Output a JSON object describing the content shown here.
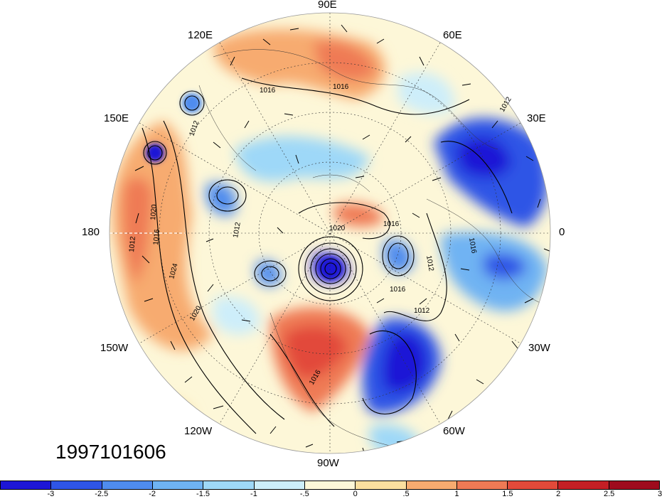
{
  "date_stamp": "1997101606",
  "lon_labels": {
    "e90": "90E",
    "e60": "60E",
    "e30": "30E",
    "zero": "0",
    "w30": "30W",
    "w60": "60W",
    "w90": "90W",
    "w120": "120W",
    "w150": "150W",
    "d180": "180",
    "e150": "150E",
    "e120": "120E"
  },
  "contour_labels": [
    "1016",
    "1012",
    "1016",
    "1012",
    "1020",
    "1016",
    "1012",
    "1020",
    "1024",
    "1020",
    "1012",
    "1016",
    "1016",
    "1016",
    "1012",
    "1012",
    "1016"
  ],
  "colorbar": {
    "colors": [
      "#1d16d6",
      "#2f55e6",
      "#4f8cee",
      "#6fb3f3",
      "#9ed8f8",
      "#cdeefa",
      "#fdf7d8",
      "#fbdf9f",
      "#f7ab70",
      "#ef7a55",
      "#e24a3a",
      "#c41f25",
      "#9e0b1d"
    ],
    "tick_labels": [
      "-3",
      "-2.5",
      "-2",
      "-1.5",
      "-1",
      "-.5",
      "0",
      ".5",
      "1",
      "1.5",
      "2",
      "2.5",
      "3"
    ]
  },
  "colors": {
    "strong_negative": "#1d16d6",
    "negative": "#4f8cee",
    "weak_negative": "#9ed8f8",
    "neutral": "#fdf7d8",
    "weak_positive": "#fbdf9f",
    "positive": "#ef7a55",
    "strong_positive": "#c41f25"
  }
}
